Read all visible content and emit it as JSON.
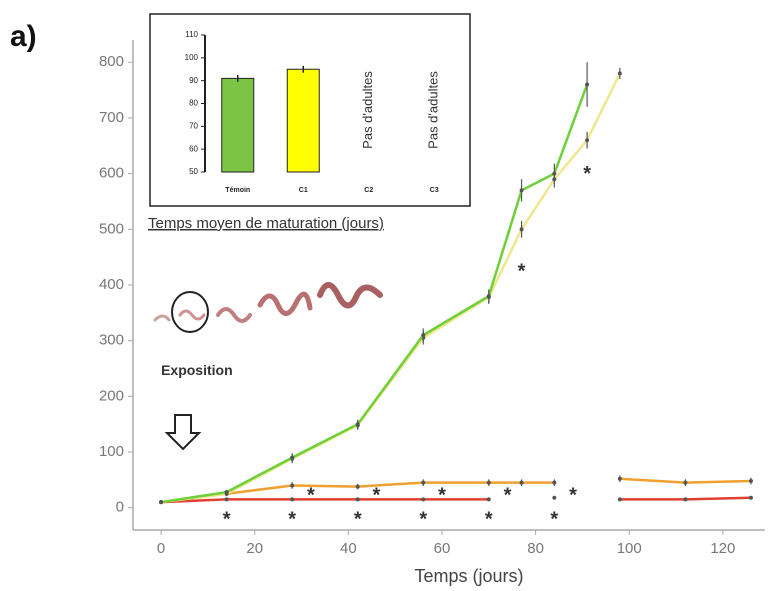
{
  "panel_label": "a)",
  "chart_data": [
    {
      "type": "line",
      "x_label": "Temps (jours)",
      "x": [
        0,
        14,
        28,
        42,
        56,
        70,
        77,
        84,
        91,
        98,
        112,
        126
      ],
      "series": [
        {
          "name": "Témoin",
          "color": "#6fcf3a",
          "values": [
            10,
            28,
            90,
            150,
            310,
            380,
            570,
            600,
            760,
            null,
            null,
            null
          ],
          "errors": [
            3,
            4,
            8,
            8,
            12,
            12,
            20,
            18,
            40,
            null,
            null,
            null
          ]
        },
        {
          "name": "C1",
          "color": "#f0e68c",
          "values": [
            10,
            25,
            88,
            148,
            305,
            378,
            500,
            590,
            660,
            780,
            null,
            null
          ],
          "errors": [
            3,
            4,
            8,
            8,
            12,
            12,
            15,
            15,
            15,
            10,
            null,
            null
          ]
        },
        {
          "name": "C2",
          "color": "#f0a030",
          "values": [
            10,
            25,
            40,
            38,
            45,
            45,
            45,
            45,
            null,
            52,
            45,
            48
          ],
          "errors": [
            3,
            4,
            6,
            5,
            6,
            6,
            6,
            6,
            null,
            6,
            6,
            6
          ]
        },
        {
          "name": "C3",
          "color": "#e04030",
          "values": [
            10,
            15,
            15,
            15,
            15,
            15,
            null,
            18,
            null,
            15,
            15,
            18
          ],
          "errors": [
            3,
            3,
            3,
            3,
            3,
            3,
            null,
            3,
            null,
            3,
            3,
            3
          ]
        }
      ],
      "xlim": [
        -6,
        129
      ],
      "ylim": [
        -40,
        840
      ],
      "xticks": [
        0,
        20,
        40,
        60,
        80,
        100,
        120
      ],
      "yticks": [
        0,
        100,
        200,
        300,
        400,
        500,
        600,
        700,
        800
      ],
      "annotations": [
        {
          "text": "*",
          "x": 14,
          "y": -15
        },
        {
          "text": "*",
          "x": 28,
          "y": -15
        },
        {
          "text": "*",
          "x": 42,
          "y": -15
        },
        {
          "text": "*",
          "x": 56,
          "y": -15
        },
        {
          "text": "*",
          "x": 70,
          "y": -15
        },
        {
          "text": "*",
          "x": 84,
          "y": -15
        },
        {
          "text": "*",
          "x": 32,
          "y": 28
        },
        {
          "text": "*",
          "x": 46,
          "y": 28
        },
        {
          "text": "*",
          "x": 60,
          "y": 28
        },
        {
          "text": "*",
          "x": 74,
          "y": 28
        },
        {
          "text": "*",
          "x": 88,
          "y": 28
        },
        {
          "text": "*",
          "x": 77,
          "y": 430
        },
        {
          "text": "*",
          "x": 91,
          "y": 605
        },
        {
          "text": "Exposition",
          "x": 0,
          "y": 245
        }
      ]
    },
    {
      "type": "bar",
      "title": "Temps moyen  de maturation (jours)",
      "categories": [
        "Témoin",
        "C1",
        "C2",
        "C3"
      ],
      "values": [
        91,
        95,
        null,
        null
      ],
      "errors": [
        1.5,
        1.5,
        null,
        null
      ],
      "value_labels": [
        null,
        null,
        "Pas d'adultes",
        "Pas d'adultes"
      ],
      "colors": [
        "#7cc444",
        "#ffff00",
        "#cccccc",
        "#cccccc"
      ],
      "ylim": [
        50,
        110
      ],
      "yticks": [
        50,
        60,
        70,
        80,
        90,
        100,
        110
      ]
    }
  ]
}
